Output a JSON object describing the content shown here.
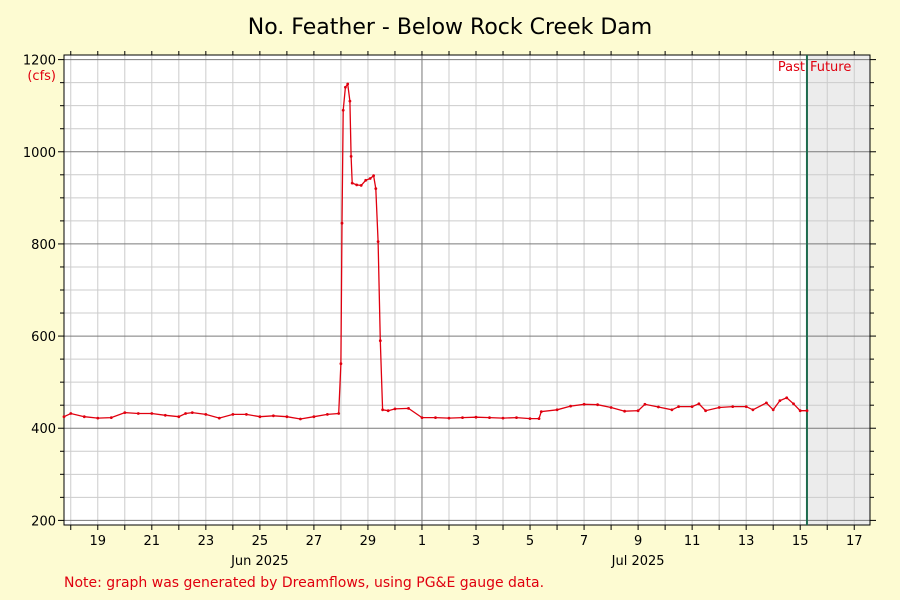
{
  "chart_data": {
    "type": "line",
    "title": "No. Feather - Below Rock Creek Dam",
    "unit_label": "(cfs)",
    "ylim": [
      190,
      1210
    ],
    "y_ticks": [
      200,
      400,
      600,
      800,
      1000,
      1200
    ],
    "x_start_date": "2025-06-17T18:00",
    "x_end_date": "2025-07-17T14:00",
    "x_tick_dates": [
      "2025-06-19",
      "2025-06-21",
      "2025-06-23",
      "2025-06-25",
      "2025-06-27",
      "2025-06-29",
      "2025-07-01",
      "2025-07-03",
      "2025-07-05",
      "2025-07-07",
      "2025-07-09",
      "2025-07-11",
      "2025-07-13",
      "2025-07-15",
      "2025-07-17"
    ],
    "x_tick_labels": [
      "19",
      "21",
      "23",
      "25",
      "27",
      "29",
      "1",
      "3",
      "5",
      "7",
      "9",
      "11",
      "13",
      "15",
      "17"
    ],
    "month_labels": [
      {
        "text": "Jun 2025",
        "date": "2025-06-25"
      },
      {
        "text": "Jul 2025",
        "date": "2025-07-09"
      }
    ],
    "month_boundary_date": "2025-07-01",
    "now_date": "2025-07-15T06:00",
    "past_label": "Past",
    "future_label": "Future",
    "grid": true,
    "series": [
      {
        "color": "#e0000f",
        "points": [
          [
            "2025-06-17T18:00",
            425
          ],
          [
            "2025-06-18T00:00",
            432
          ],
          [
            "2025-06-18T12:00",
            425
          ],
          [
            "2025-06-19T00:00",
            422
          ],
          [
            "2025-06-19T12:00",
            423
          ],
          [
            "2025-06-20T00:00",
            434
          ],
          [
            "2025-06-20T12:00",
            432
          ],
          [
            "2025-06-21T00:00",
            432
          ],
          [
            "2025-06-21T12:00",
            428
          ],
          [
            "2025-06-22T00:00",
            425
          ],
          [
            "2025-06-22T06:00",
            432
          ],
          [
            "2025-06-22T12:00",
            434
          ],
          [
            "2025-06-23T00:00",
            430
          ],
          [
            "2025-06-23T12:00",
            422
          ],
          [
            "2025-06-24T00:00",
            430
          ],
          [
            "2025-06-24T12:00",
            430
          ],
          [
            "2025-06-25T00:00",
            425
          ],
          [
            "2025-06-25T12:00",
            427
          ],
          [
            "2025-06-26T00:00",
            425
          ],
          [
            "2025-06-26T12:00",
            420
          ],
          [
            "2025-06-27T00:00",
            425
          ],
          [
            "2025-06-27T12:00",
            430
          ],
          [
            "2025-06-27T22:00",
            432
          ],
          [
            "2025-06-28T00:00",
            540
          ],
          [
            "2025-06-28T01:00",
            845
          ],
          [
            "2025-06-28T02:00",
            1090
          ],
          [
            "2025-06-28T04:00",
            1140
          ],
          [
            "2025-06-28T06:00",
            1147
          ],
          [
            "2025-06-28T08:00",
            1110
          ],
          [
            "2025-06-28T09:00",
            990
          ],
          [
            "2025-06-28T10:00",
            932
          ],
          [
            "2025-06-28T14:00",
            928
          ],
          [
            "2025-06-28T18:00",
            927
          ],
          [
            "2025-06-28T22:00",
            938
          ],
          [
            "2025-06-29T02:00",
            942
          ],
          [
            "2025-06-29T05:00",
            948
          ],
          [
            "2025-06-29T07:00",
            920
          ],
          [
            "2025-06-29T09:00",
            805
          ],
          [
            "2025-06-29T11:00",
            590
          ],
          [
            "2025-06-29T13:00",
            440
          ],
          [
            "2025-06-29T18:00",
            438
          ],
          [
            "2025-06-30T00:00",
            442
          ],
          [
            "2025-06-30T12:00",
            443
          ],
          [
            "2025-07-01T00:00",
            423
          ],
          [
            "2025-07-01T12:00",
            423
          ],
          [
            "2025-07-02T00:00",
            422
          ],
          [
            "2025-07-02T12:00",
            423
          ],
          [
            "2025-07-03T00:00",
            424
          ],
          [
            "2025-07-03T12:00",
            423
          ],
          [
            "2025-07-04T00:00",
            422
          ],
          [
            "2025-07-04T12:00",
            423
          ],
          [
            "2025-07-05T00:00",
            421
          ],
          [
            "2025-07-05T08:00",
            421
          ],
          [
            "2025-07-05T10:00",
            436
          ],
          [
            "2025-07-06T00:00",
            440
          ],
          [
            "2025-07-06T12:00",
            448
          ],
          [
            "2025-07-07T00:00",
            452
          ],
          [
            "2025-07-07T12:00",
            451
          ],
          [
            "2025-07-08T00:00",
            445
          ],
          [
            "2025-07-08T12:00",
            437
          ],
          [
            "2025-07-09T00:00",
            438
          ],
          [
            "2025-07-09T06:00",
            452
          ],
          [
            "2025-07-09T18:00",
            446
          ],
          [
            "2025-07-10T06:00",
            440
          ],
          [
            "2025-07-10T12:00",
            447
          ],
          [
            "2025-07-11T00:00",
            447
          ],
          [
            "2025-07-11T06:00",
            453
          ],
          [
            "2025-07-11T12:00",
            438
          ],
          [
            "2025-07-12T00:00",
            445
          ],
          [
            "2025-07-12T12:00",
            447
          ],
          [
            "2025-07-13T00:00",
            447
          ],
          [
            "2025-07-13T06:00",
            440
          ],
          [
            "2025-07-13T18:00",
            455
          ],
          [
            "2025-07-14T00:00",
            440
          ],
          [
            "2025-07-14T06:00",
            460
          ],
          [
            "2025-07-14T12:00",
            466
          ],
          [
            "2025-07-14T18:00",
            453
          ],
          [
            "2025-07-15T00:00",
            438
          ],
          [
            "2025-07-15T06:00",
            438
          ]
        ]
      }
    ]
  },
  "note": "Note: graph was generated by Dreamflows, using PG&E gauge data.",
  "colors": {
    "background": "#fdfbd2",
    "plot_background": "#ffffff",
    "future_background": "#ececec",
    "minor_grid": "#cccccc",
    "major_grid": "#7a7a7a",
    "now_line": "#1e6b4e",
    "series": "#e0000f",
    "annotation": "#e0000f"
  }
}
